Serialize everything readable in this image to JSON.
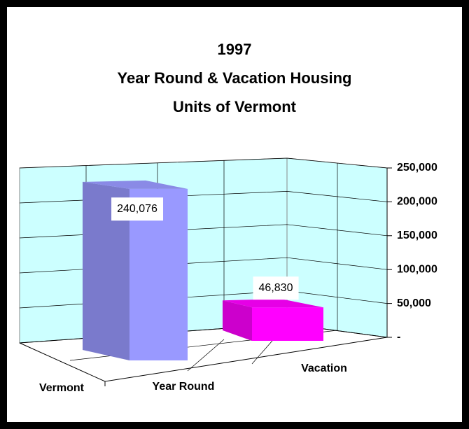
{
  "chart_data": {
    "type": "bar3d",
    "title": [
      "1997",
      "Year Round & Vacation Housing",
      "Units of Vermont"
    ],
    "categories": [
      "Year Round",
      "Vacation"
    ],
    "series": [
      {
        "name": "Vermont",
        "colors": [
          "#9999ff",
          "#ff00ff"
        ],
        "values": [
          240076,
          46830
        ],
        "value_labels": [
          "240,076",
          "46,830"
        ]
      }
    ],
    "ylim": [
      0,
      250000
    ],
    "yticks": [
      {
        "value": 0,
        "label": "-"
      },
      {
        "value": 50000,
        "label": "50,000"
      },
      {
        "value": 100000,
        "label": "100,000"
      },
      {
        "value": 150000,
        "label": "150,000"
      },
      {
        "value": 200000,
        "label": "200,000"
      },
      {
        "value": 250000,
        "label": "250,000"
      }
    ],
    "grid": true,
    "wall_color": "#ccffff"
  }
}
